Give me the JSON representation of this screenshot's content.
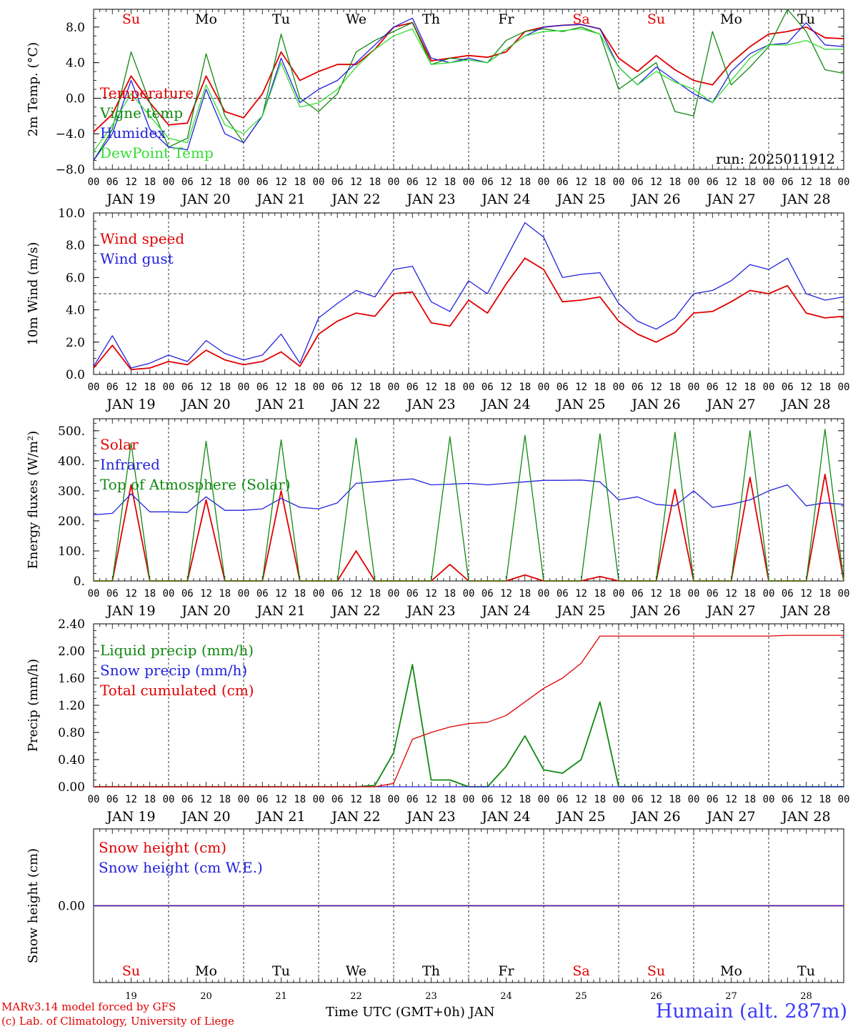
{
  "chart_data": [
    {
      "type": "line",
      "id": "temp",
      "ylabel": "2m Temp. (°C)",
      "ylim": [
        -8,
        10
      ],
      "yticks": [
        -8,
        -4,
        0,
        4,
        8
      ],
      "ytick_labels": [
        "−8.0",
        "−4.0",
        "0.0",
        "4.0",
        "8.0"
      ],
      "ref_line": 0,
      "annotation": "run: 2025011912",
      "day_labels": [
        "Su",
        "Mo",
        "Tu",
        "We",
        "Th",
        "Fr",
        "Sa",
        "Su",
        "Mo",
        "Tu"
      ],
      "day_label_colors": [
        "#e00000",
        "#000000",
        "#000000",
        "#000000",
        "#000000",
        "#000000",
        "#e00000",
        "#e00000",
        "#000000",
        "#000000"
      ],
      "x_hours": [
        0,
        6,
        12,
        18,
        24,
        30,
        36,
        42,
        48,
        54,
        60,
        66,
        72,
        78,
        84,
        90,
        96,
        102,
        108,
        114,
        120,
        126,
        132,
        138,
        144,
        150,
        156,
        162,
        168,
        174,
        180,
        186,
        192,
        198,
        204,
        210,
        216,
        222,
        228,
        234,
        240
      ],
      "series": [
        {
          "name": "Temperature",
          "color": "#e00000",
          "values": [
            -3.8,
            -1.8,
            2.5,
            -0.5,
            -3.0,
            -2.8,
            2.5,
            -1.5,
            -2.2,
            0.5,
            5.2,
            2.0,
            3.0,
            3.8,
            3.8,
            5.5,
            8.0,
            8.5,
            4.2,
            4.5,
            4.8,
            4.6,
            5.2,
            7.5,
            8.0,
            8.2,
            8.3,
            7.8,
            4.5,
            3.0,
            4.8,
            3.2,
            2.0,
            1.5,
            4.0,
            5.8,
            7.2,
            7.5,
            8.0,
            6.8,
            6.7
          ]
        },
        {
          "name": "Vigne temp",
          "color": "#118811",
          "values": [
            -7.0,
            -3.5,
            5.2,
            -0.5,
            -5.5,
            -4.5,
            5.0,
            -2.0,
            -5.0,
            -2.0,
            7.2,
            0.0,
            -1.5,
            0.5,
            5.2,
            6.5,
            7.5,
            8.5,
            3.8,
            4.5,
            4.3,
            4.0,
            6.5,
            7.5,
            7.8,
            7.5,
            8.0,
            7.2,
            1.0,
            2.5,
            4.0,
            -1.5,
            -2.0,
            7.5,
            1.5,
            3.5,
            5.8,
            10.0,
            7.5,
            3.2,
            2.8
          ]
        },
        {
          "name": "Humidex",
          "color": "#2222dd",
          "values": [
            -7.0,
            -4.0,
            2.0,
            -3.5,
            -5.5,
            -5.8,
            1.0,
            -4.0,
            -5.0,
            -2.0,
            4.5,
            -0.5,
            1.0,
            2.0,
            4.0,
            6.0,
            8.0,
            9.0,
            4.5,
            4.0,
            4.5,
            4.0,
            5.5,
            7.0,
            8.0,
            8.2,
            8.3,
            7.8,
            3.5,
            1.5,
            3.5,
            2.0,
            0.5,
            -0.5,
            3.0,
            5.0,
            6.0,
            6.2,
            8.5,
            6.0,
            5.8
          ]
        },
        {
          "name": "DewPoint Temp",
          "color": "#33dd33",
          "values": [
            -6.0,
            -3.0,
            0.5,
            -2.0,
            -4.5,
            -5.0,
            1.5,
            -3.0,
            -4.0,
            -2.0,
            4.0,
            -1.0,
            -0.5,
            1.0,
            3.5,
            5.5,
            7.0,
            7.8,
            3.8,
            4.0,
            4.3,
            4.0,
            5.5,
            7.0,
            7.5,
            7.6,
            7.8,
            7.2,
            3.5,
            1.5,
            3.0,
            1.8,
            1.0,
            -0.5,
            2.0,
            4.5,
            6.0,
            6.0,
            6.5,
            5.5,
            5.5
          ]
        }
      ]
    },
    {
      "type": "line",
      "id": "wind",
      "ylabel": "10m Wind (m/s)",
      "ylim": [
        0,
        10
      ],
      "yticks": [
        0,
        2,
        4,
        6,
        8,
        10
      ],
      "ytick_labels": [
        "0.0",
        "2.0",
        "4.0",
        "6.0",
        "8.0",
        "10.0"
      ],
      "ref_line": 5,
      "x_hours": [
        0,
        6,
        12,
        18,
        24,
        30,
        36,
        42,
        48,
        54,
        60,
        66,
        72,
        78,
        84,
        90,
        96,
        102,
        108,
        114,
        120,
        126,
        132,
        138,
        144,
        150,
        156,
        162,
        168,
        174,
        180,
        186,
        192,
        198,
        204,
        210,
        216,
        222,
        228,
        234,
        240
      ],
      "series": [
        {
          "name": "Wind speed",
          "color": "#e00000",
          "values": [
            0.4,
            1.8,
            0.3,
            0.4,
            0.8,
            0.6,
            1.5,
            0.9,
            0.6,
            0.8,
            1.4,
            0.5,
            2.5,
            3.3,
            3.8,
            3.6,
            5.0,
            5.1,
            3.2,
            3.0,
            4.6,
            3.8,
            5.6,
            7.2,
            6.5,
            4.5,
            4.6,
            4.8,
            3.3,
            2.5,
            2.0,
            2.6,
            3.8,
            3.9,
            4.5,
            5.2,
            5.0,
            5.5,
            3.8,
            3.5,
            3.6
          ]
        },
        {
          "name": "Wind gust",
          "color": "#2222dd",
          "values": [
            0.5,
            2.4,
            0.4,
            0.7,
            1.2,
            0.8,
            2.1,
            1.3,
            0.9,
            1.2,
            2.5,
            0.7,
            3.5,
            4.4,
            5.2,
            4.8,
            6.5,
            6.7,
            4.5,
            3.9,
            5.8,
            5.0,
            7.2,
            9.4,
            8.5,
            6.0,
            6.2,
            6.3,
            4.4,
            3.3,
            2.8,
            3.5,
            5.0,
            5.2,
            5.8,
            6.8,
            6.5,
            7.2,
            5.0,
            4.6,
            4.8
          ]
        }
      ]
    },
    {
      "type": "line",
      "id": "energy",
      "ylabel": "Energy fluxes (W/m²)",
      "ylim": [
        0,
        540
      ],
      "yticks": [
        0,
        100,
        200,
        300,
        400,
        500
      ],
      "ytick_labels": [
        "0.",
        "100.",
        "200.",
        "300.",
        "400.",
        "500."
      ],
      "x_hours": [
        0,
        6,
        12,
        18,
        24,
        30,
        36,
        42,
        48,
        54,
        60,
        66,
        72,
        78,
        84,
        90,
        96,
        102,
        108,
        114,
        120,
        126,
        132,
        138,
        144,
        150,
        156,
        162,
        168,
        174,
        180,
        186,
        192,
        198,
        204,
        210,
        216,
        222,
        228,
        234,
        240
      ],
      "series": [
        {
          "name": "Solar",
          "color": "#e00000",
          "values": [
            0,
            0,
            320,
            0,
            0,
            0,
            270,
            0,
            0,
            0,
            300,
            0,
            0,
            0,
            100,
            0,
            0,
            0,
            0,
            55,
            0,
            0,
            0,
            20,
            0,
            0,
            0,
            15,
            0,
            0,
            0,
            305,
            0,
            0,
            0,
            345,
            0,
            0,
            0,
            355,
            0
          ]
        },
        {
          "name": "Infrared",
          "color": "#2222dd",
          "values": [
            220,
            225,
            290,
            230,
            230,
            228,
            280,
            235,
            235,
            240,
            275,
            245,
            240,
            260,
            325,
            330,
            335,
            340,
            320,
            322,
            325,
            320,
            325,
            330,
            335,
            335,
            336,
            330,
            270,
            280,
            255,
            250,
            300,
            245,
            255,
            270,
            300,
            320,
            250,
            260,
            255
          ]
        },
        {
          "name": "Top of Atmosphere (Solar)",
          "color": "#118811",
          "values": [
            0,
            0,
            460,
            0,
            0,
            0,
            465,
            0,
            0,
            0,
            470,
            0,
            0,
            0,
            475,
            0,
            0,
            0,
            0,
            480,
            0,
            0,
            0,
            485,
            0,
            0,
            0,
            490,
            0,
            0,
            0,
            495,
            0,
            0,
            0,
            500,
            0,
            0,
            0,
            505,
            0
          ]
        }
      ]
    },
    {
      "type": "line",
      "id": "precip",
      "ylabel": "Precip (mm/h)",
      "ylim": [
        0,
        2.4
      ],
      "yticks": [
        0,
        0.4,
        0.8,
        1.2,
        1.6,
        2.0,
        2.4
      ],
      "ytick_labels": [
        "0.00",
        "0.40",
        "0.80",
        "1.20",
        "1.60",
        "2.00",
        "2.40"
      ],
      "x_hours": [
        0,
        6,
        12,
        18,
        24,
        30,
        36,
        42,
        48,
        54,
        60,
        66,
        72,
        78,
        84,
        90,
        96,
        102,
        108,
        114,
        120,
        126,
        132,
        138,
        144,
        150,
        156,
        162,
        168,
        174,
        180,
        186,
        192,
        198,
        204,
        210,
        216,
        222,
        228,
        234,
        240
      ],
      "series": [
        {
          "name": "Liquid precip (mm/h)",
          "color": "#118811",
          "values": [
            0,
            0,
            0,
            0,
            0,
            0,
            0,
            0,
            0,
            0,
            0,
            0,
            0,
            0,
            0,
            0.02,
            0.5,
            1.8,
            0.1,
            0.1,
            0,
            0,
            0.3,
            0.75,
            0.25,
            0.2,
            0.4,
            1.25,
            0,
            0,
            0,
            0,
            0,
            0,
            0,
            0,
            0,
            0,
            0,
            0,
            0
          ]
        },
        {
          "name": "Snow precip (mm/h)",
          "color": "#2222dd",
          "values": [
            0,
            0,
            0,
            0,
            0,
            0,
            0,
            0,
            0,
            0,
            0,
            0,
            0,
            0,
            0,
            0,
            0,
            0,
            0,
            0,
            0,
            0,
            0,
            0,
            0,
            0,
            0,
            0,
            0,
            0,
            0,
            0,
            0,
            0,
            0,
            0,
            0,
            0,
            0,
            0,
            0
          ]
        },
        {
          "name": "Total cumulated (cm)",
          "color": "#e00000",
          "values": [
            0,
            0,
            0,
            0,
            0,
            0,
            0,
            0,
            0,
            0,
            0,
            0,
            0,
            0,
            0,
            0,
            0.05,
            0.7,
            0.8,
            0.88,
            0.93,
            0.95,
            1.05,
            1.25,
            1.45,
            1.6,
            1.82,
            2.22,
            2.22,
            2.22,
            2.22,
            2.22,
            2.22,
            2.22,
            2.22,
            2.22,
            2.22,
            2.23,
            2.23,
            2.23,
            2.23
          ]
        }
      ]
    },
    {
      "type": "line",
      "id": "snow",
      "ylabel": "Snow height (cm)",
      "ylim": [
        -1,
        1
      ],
      "yticks": [
        0
      ],
      "ytick_labels": [
        "0.00"
      ],
      "day_labels": [
        "Su",
        "Mo",
        "Tu",
        "We",
        "Th",
        "Fr",
        "Sa",
        "Su",
        "Mo",
        "Tu"
      ],
      "day_label_colors": [
        "#e00000",
        "#000000",
        "#000000",
        "#000000",
        "#000000",
        "#000000",
        "#e00000",
        "#e00000",
        "#000000",
        "#000000"
      ],
      "day_numbers": [
        "19",
        "20",
        "21",
        "22",
        "23",
        "24",
        "25",
        "26",
        "27",
        "28"
      ],
      "x_hours": [
        0,
        240
      ],
      "series": [
        {
          "name": "Snow height (cm)",
          "color": "#e00000",
          "values": [
            0,
            0
          ]
        },
        {
          "name": "Snow height (cm W.E.)",
          "color": "#2222dd",
          "values": [
            0,
            0
          ]
        }
      ]
    }
  ],
  "x_axis": {
    "hour_ticks": [
      "00",
      "06",
      "12",
      "18"
    ],
    "dates": [
      "JAN 19",
      "JAN 20",
      "JAN 21",
      "JAN 22",
      "JAN 23",
      "JAN 24",
      "JAN 25",
      "JAN 26",
      "JAN 27",
      "JAN 28"
    ],
    "bottom_label": "Time UTC (GMT+0h) JAN"
  },
  "footer": {
    "line1": "MARv3.14 model forced by GFS",
    "line2": "(c) Lab. of Climatology, University of Liege",
    "station": "Humain (alt. 287m)"
  },
  "colors": {
    "red": "#e00000",
    "green": "#118811",
    "blue": "#2222dd",
    "light_green": "#33dd33",
    "station": "#3b3bff"
  }
}
